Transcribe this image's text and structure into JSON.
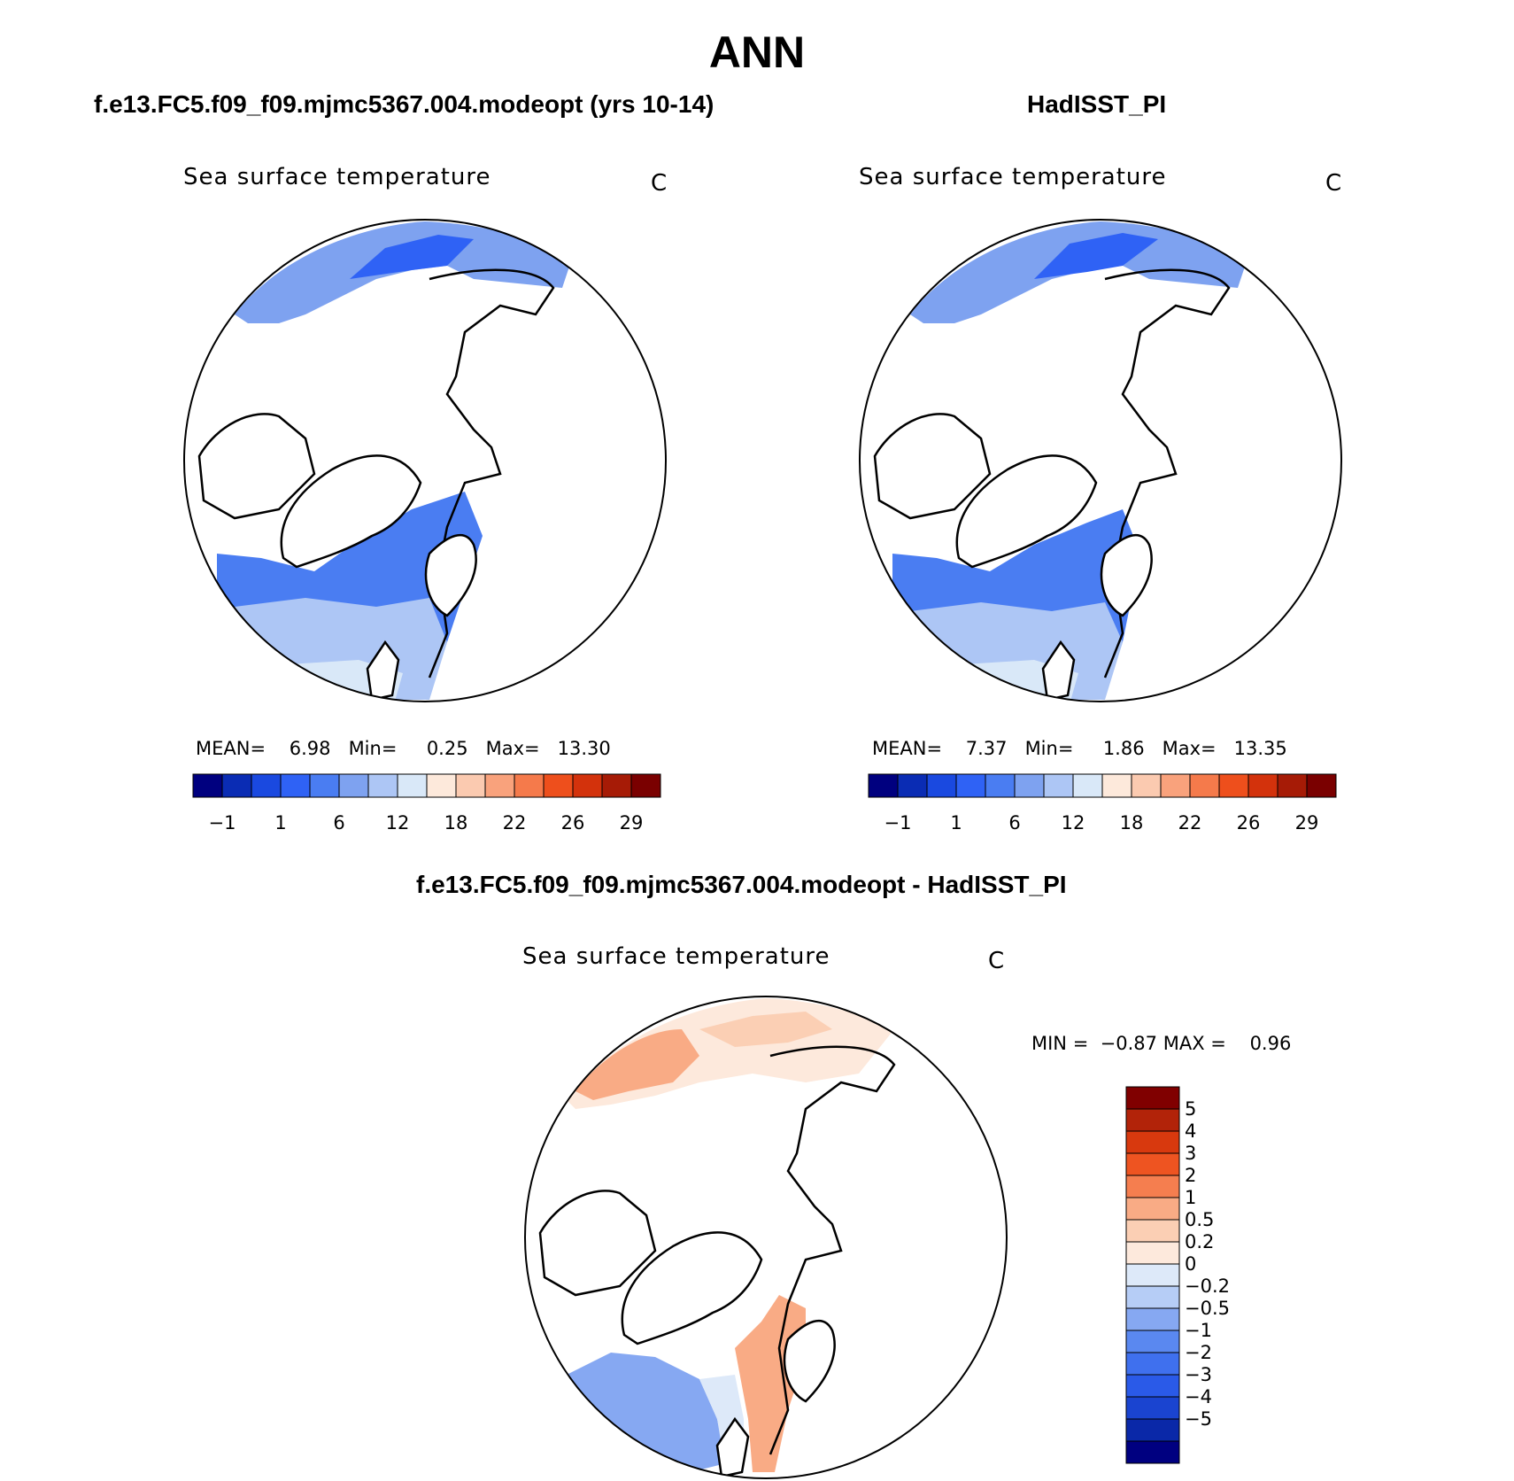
{
  "page": {
    "title": "ANN"
  },
  "panels": {
    "model": {
      "title": "f.e13.FC5.f09_f09.mjmc5367.004.modeopt (yrs 10-14)",
      "variable": "Sea surface temperature",
      "units": "C",
      "stats": {
        "mean_label": "MEAN=",
        "mean": "6.98",
        "min_label": "Min=",
        "min": "0.25",
        "max_label": "Max=",
        "max": "13.30"
      }
    },
    "obs": {
      "title": "HadISST_PI",
      "variable": "Sea surface temperature",
      "units": "C",
      "stats": {
        "mean_label": "MEAN=",
        "mean": "7.37",
        "min_label": "Min=",
        "min": "1.86",
        "max_label": "Max=",
        "max": "13.35"
      }
    },
    "diff": {
      "title": "f.e13.FC5.f09_f09.mjmc5367.004.modeopt - HadISST_PI",
      "variable": "Sea surface temperature",
      "units": "C",
      "stats": {
        "min_label": "MIN =",
        "min": "−0.87",
        "max_label": "MAX =",
        "max": "0.96"
      }
    }
  },
  "colorbars": {
    "abs": {
      "colors": [
        "#00007f",
        "#0a2cb4",
        "#1a49e0",
        "#2f62f5",
        "#4a7df2",
        "#7ea2f0",
        "#adc6f5",
        "#d9e8f8",
        "#fde9db",
        "#fbcab0",
        "#f9a27c",
        "#f57a4b",
        "#ee4f1c",
        "#d3320c",
        "#a61b06",
        "#7a0000"
      ],
      "tick_labels": [
        "−1",
        "1",
        "6",
        "12",
        "18",
        "22",
        "26",
        "29"
      ]
    },
    "diff": {
      "colors": [
        "#000080",
        "#0a28a8",
        "#1a44d0",
        "#2a5ae8",
        "#3f70ee",
        "#5a88f0",
        "#86a8f2",
        "#b6cdf6",
        "#dde9f9",
        "#fde9dc",
        "#fbcfb4",
        "#f9ab85",
        "#f57e4f",
        "#ee5421",
        "#d8390e",
        "#b22309",
        "#800000"
      ],
      "tick_labels": [
        "5",
        "4",
        "3",
        "2",
        "1",
        "0.5",
        "0.2",
        "0",
        "−0.2",
        "−0.5",
        "−1",
        "−2",
        "−3",
        "−4",
        "−5"
      ]
    }
  },
  "chart_data": [
    {
      "type": "heatmap",
      "projection": "north polar stereographic",
      "title": "f.e13.FC5.f09_f09.mjmc5367.004.modeopt (yrs 10-14)",
      "variable": "Sea surface temperature",
      "units": "C",
      "stats": {
        "mean": 6.98,
        "min": 0.25,
        "max": 13.3
      },
      "levels": [
        -1,
        1,
        6,
        12,
        18,
        22,
        26,
        29
      ]
    },
    {
      "type": "heatmap",
      "projection": "north polar stereographic",
      "title": "HadISST_PI",
      "variable": "Sea surface temperature",
      "units": "C",
      "stats": {
        "mean": 7.37,
        "min": 1.86,
        "max": 13.35
      },
      "levels": [
        -1,
        1,
        6,
        12,
        18,
        22,
        26,
        29
      ]
    },
    {
      "type": "heatmap",
      "projection": "north polar stereographic",
      "title": "f.e13.FC5.f09_f09.mjmc5367.004.modeopt - HadISST_PI",
      "variable": "Sea surface temperature",
      "units": "C",
      "stats": {
        "min": -0.87,
        "max": 0.96
      },
      "levels": [
        -5,
        -4,
        -3,
        -2,
        -1,
        -0.5,
        -0.2,
        0,
        0.2,
        0.5,
        1,
        2,
        3,
        4,
        5
      ]
    }
  ]
}
